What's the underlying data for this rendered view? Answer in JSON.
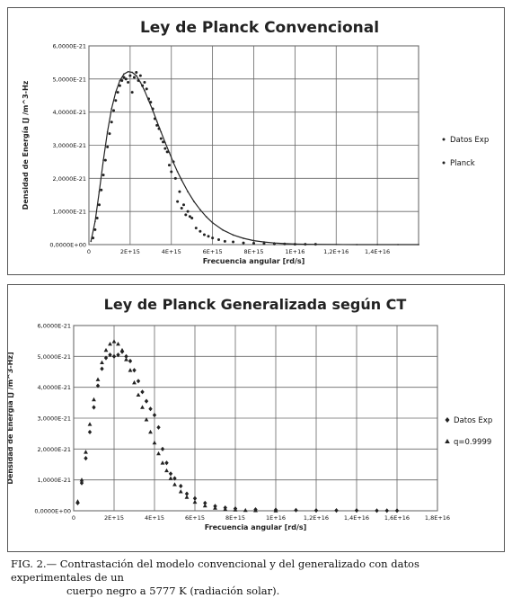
{
  "chart_data": [
    {
      "type": "scatter",
      "title": "Ley de Planck Convencional",
      "xlabel": "Frecuencia angular [rd/s]",
      "ylabel": "Densidad de Energía [J /m^3-Hz",
      "xlim": [
        0,
        1.6e+16
      ],
      "ylim": [
        0,
        6e-21
      ],
      "x_ticks": [
        "0",
        "2E+15",
        "4E+15",
        "6E+15",
        "8E+15",
        "1E+16",
        "1,2E+16",
        "1,4E+16"
      ],
      "y_ticks": [
        "0,0000E+00",
        "1,0000E-21",
        "2,0000E-21",
        "3,0000E-21",
        "4,0000E-21",
        "5,0000E-21",
        "6,0000E-21"
      ],
      "grid": true,
      "legend_position": "right",
      "series": [
        {
          "name": "Datos Exp",
          "marker": "dot",
          "x": [
            200000000000000.0,
            300000000000000.0,
            400000000000000.0,
            500000000000000.0,
            600000000000000.0,
            700000000000000.0,
            800000000000000.0,
            900000000000000.0,
            1000000000000000.0,
            1100000000000000.0,
            1200000000000000.0,
            1300000000000000.0,
            1400000000000000.0,
            1500000000000000.0,
            1600000000000000.0,
            1700000000000000.0,
            1800000000000000.0,
            1900000000000000.0,
            2000000000000000.0,
            2100000000000000.0,
            2200000000000000.0,
            2300000000000000.0,
            2400000000000000.0,
            2500000000000000.0,
            2600000000000000.0,
            2700000000000000.0,
            2800000000000000.0,
            2900000000000000.0,
            3000000000000000.0,
            3100000000000000.0,
            3200000000000000.0,
            3300000000000000.0,
            3400000000000000.0,
            3500000000000000.0,
            3600000000000000.0,
            3700000000000000.0,
            3800000000000000.0,
            3900000000000000.0,
            4000000000000000.0,
            4100000000000000.0,
            4200000000000000.0,
            4300000000000000.0,
            4400000000000000.0,
            4500000000000000.0,
            4600000000000000.0,
            4700000000000000.0,
            4800000000000000.0,
            4900000000000000.0,
            5000000000000000.0,
            5200000000000000.0,
            5400000000000000.0,
            5600000000000000.0,
            5800000000000000.0,
            6000000000000000.0,
            6300000000000000.0,
            6600000000000000.0,
            7000000000000000.0,
            7500000000000000.0,
            8000000000000000.0,
            8500000000000000.0,
            9000000000000000.0,
            9500000000000000.0,
            1e+16,
            1.05e+16,
            1.1e+16
          ],
          "y": [
            2e-22,
            4.5e-22,
            8e-22,
            1.2e-21,
            1.65e-21,
            2.1e-21,
            2.55e-21,
            2.95e-21,
            3.35e-21,
            3.7e-21,
            4.05e-21,
            4.35e-21,
            4.6e-21,
            4.8e-21,
            4.95e-21,
            5.05e-21,
            5e-21,
            4.9e-21,
            5.1e-21,
            4.6e-21,
            5.05e-21,
            5.2e-21,
            4.95e-21,
            5.1e-21,
            4.8e-21,
            4.9e-21,
            4.7e-21,
            4.4e-21,
            4.3e-21,
            4.1e-21,
            3.8e-21,
            3.6e-21,
            3.5e-21,
            3.2e-21,
            3.1e-21,
            2.9e-21,
            2.8e-21,
            2.4e-21,
            2.2e-21,
            2.5e-21,
            2e-21,
            1.3e-21,
            1.6e-21,
            1.1e-21,
            1.2e-21,
            9e-22,
            1e-21,
            8.5e-22,
            8e-22,
            5e-22,
            4e-22,
            3e-22,
            2.5e-22,
            2e-22,
            1.5e-22,
            1e-22,
            8e-23,
            5e-23,
            4e-23,
            3e-23,
            2e-23,
            2e-23,
            1e-23,
            1e-23,
            1e-23
          ]
        },
        {
          "name": "Planck",
          "marker": "line",
          "x": [
            100000000000000.0,
            300000000000000.0,
            500000000000000.0,
            700000000000000.0,
            900000000000000.0,
            1100000000000000.0,
            1300000000000000.0,
            1500000000000000.0,
            1700000000000000.0,
            1900000000000000.0,
            2100000000000000.0,
            2300000000000000.0,
            2500000000000000.0,
            2700000000000000.0,
            2900000000000000.0,
            3100000000000000.0,
            3300000000000000.0,
            3500000000000000.0,
            3700000000000000.0,
            3900000000000000.0,
            4100000000000000.0,
            4300000000000000.0,
            4500000000000000.0,
            4800000000000000.0,
            5100000000000000.0,
            5400000000000000.0,
            5700000000000000.0,
            6000000000000000.0,
            6500000000000000.0,
            7000000000000000.0,
            7500000000000000.0,
            8000000000000000.0,
            8500000000000000.0,
            9000000000000000.0,
            9500000000000000.0,
            1e+16,
            1.05e+16,
            1.1e+16,
            1.2e+16,
            1.3e+16,
            1.4e+16,
            1.5e+16,
            1.6e+16
          ],
          "y": [
            1e-22,
            7e-22,
            1.6e-21,
            2.55e-21,
            3.4e-21,
            4.1e-21,
            4.6e-21,
            4.95e-21,
            5.15e-21,
            5.22e-21,
            5.2e-21,
            5.1e-21,
            4.9e-21,
            4.65e-21,
            4.35e-21,
            4.05e-21,
            3.72e-21,
            3.4e-21,
            3.08e-21,
            2.78e-21,
            2.48e-21,
            2.2e-21,
            1.95e-21,
            1.6e-21,
            1.3e-21,
            1.05e-21,
            8.4e-22,
            6.6e-22,
            4.4e-22,
            2.9e-22,
            1.9e-22,
            1.2e-22,
            8e-23,
            5e-23,
            3e-23,
            2e-23,
            1.2e-23,
            8e-24,
            3e-24,
            1e-24,
            5e-25,
            2e-25,
            1e-25
          ]
        }
      ]
    },
    {
      "type": "scatter",
      "title": "Ley de Planck Generalizada según CT",
      "xlabel": "Frecuencia angular [rd/s]",
      "ylabel": "Densidad de Energía [J /m^3-Hz]",
      "xlim": [
        0,
        1.8e+16
      ],
      "ylim": [
        0,
        6e-21
      ],
      "x_ticks": [
        "0",
        "2E+15",
        "4E+15",
        "6E+15",
        "8E+15",
        "1E+16",
        "1,2E+16",
        "1,4E+16",
        "1,6E+16",
        "1,8E+16"
      ],
      "y_ticks": [
        "0,0000E+00",
        "1,0000E-21",
        "2,0000E-21",
        "3,0000E-21",
        "4,0000E-21",
        "5,0000E-21",
        "6,0000E-21"
      ],
      "grid": true,
      "legend_position": "right",
      "series": [
        {
          "name": "Datos Exp",
          "marker": "diamond",
          "x": [
            200000000000000.0,
            400000000000000.0,
            600000000000000.0,
            800000000000000.0,
            1000000000000000.0,
            1200000000000000.0,
            1400000000000000.0,
            1600000000000000.0,
            1800000000000000.0,
            2000000000000000.0,
            2200000000000000.0,
            2400000000000000.0,
            2600000000000000.0,
            2800000000000000.0,
            3000000000000000.0,
            3200000000000000.0,
            3400000000000000.0,
            3600000000000000.0,
            3800000000000000.0,
            4000000000000000.0,
            4200000000000000.0,
            4400000000000000.0,
            4600000000000000.0,
            4800000000000000.0,
            5000000000000000.0,
            5300000000000000.0,
            5600000000000000.0,
            6000000000000000.0,
            6500000000000000.0,
            7000000000000000.0,
            7500000000000000.0,
            8000000000000000.0,
            9000000000000000.0,
            1e+16,
            1.1e+16,
            1.2e+16,
            1.3e+16,
            1.4e+16,
            1.5e+16,
            1.55e+16,
            1.6e+16
          ],
          "y": [
            2.5e-22,
            9e-22,
            1.7e-21,
            2.55e-21,
            3.35e-21,
            4.05e-21,
            4.6e-21,
            4.95e-21,
            5.05e-21,
            5e-21,
            5.05e-21,
            5.15e-21,
            5e-21,
            4.85e-21,
            4.55e-21,
            4.2e-21,
            3.85e-21,
            3.55e-21,
            3.3e-21,
            3.1e-21,
            2.7e-21,
            2e-21,
            1.55e-21,
            1.2e-21,
            1.05e-21,
            8e-22,
            5.5e-22,
            4e-22,
            2.5e-22,
            1.5e-22,
            1e-22,
            7e-23,
            4e-23,
            3e-23,
            2e-23,
            1e-23,
            1e-23,
            1e-23,
            5e-24,
            5e-24,
            5e-24
          ]
        },
        {
          "name": "q=0.9999",
          "marker": "triangle",
          "x": [
            200000000000000.0,
            400000000000000.0,
            600000000000000.0,
            800000000000000.0,
            1000000000000000.0,
            1200000000000000.0,
            1400000000000000.0,
            1600000000000000.0,
            1800000000000000.0,
            2000000000000000.0,
            2200000000000000.0,
            2400000000000000.0,
            2600000000000000.0,
            2800000000000000.0,
            3000000000000000.0,
            3200000000000000.0,
            3400000000000000.0,
            3600000000000000.0,
            3800000000000000.0,
            4000000000000000.0,
            4200000000000000.0,
            4400000000000000.0,
            4600000000000000.0,
            4800000000000000.0,
            5000000000000000.0,
            5300000000000000.0,
            5600000000000000.0,
            6000000000000000.0,
            6500000000000000.0,
            7000000000000000.0,
            7500000000000000.0,
            8000000000000000.0,
            8500000000000000.0,
            9000000000000000.0,
            1e+16
          ],
          "y": [
            3e-22,
            1e-21,
            1.9e-21,
            2.8e-21,
            3.6e-21,
            4.25e-21,
            4.8e-21,
            5.2e-21,
            5.4e-21,
            5.48e-21,
            5.4e-21,
            5.2e-21,
            4.9e-21,
            4.55e-21,
            4.15e-21,
            3.75e-21,
            3.35e-21,
            2.95e-21,
            2.55e-21,
            2.2e-21,
            1.85e-21,
            1.55e-21,
            1.3e-21,
            1.05e-21,
            8.5e-22,
            6.2e-22,
            4.4e-22,
            2.8e-22,
            1.6e-22,
            9e-23,
            5e-23,
            3e-23,
            1.5e-23,
            8e-24,
            3e-24
          ]
        }
      ]
    }
  ],
  "caption": {
    "line1": "FIG. 2.— Contrastación del modelo convencional y del generalizado con datos experimentales de un",
    "line2": "cuerpo negro a 5777 K (radiación solar)."
  }
}
